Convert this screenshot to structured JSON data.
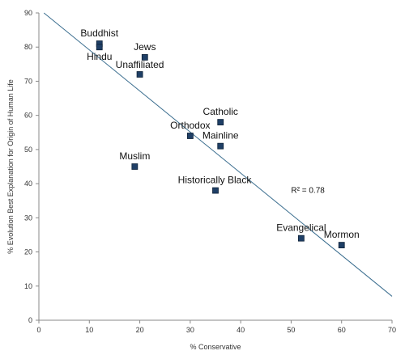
{
  "chart_data": {
    "type": "scatter",
    "title": "",
    "xlabel": "% Conservative",
    "ylabel": "% Evolution Best Explanation for Origin of Human Life",
    "xlim": [
      0,
      70
    ],
    "ylim": [
      0,
      90
    ],
    "x_ticks": [
      0,
      10,
      20,
      30,
      40,
      50,
      60,
      70
    ],
    "y_ticks": [
      0,
      10,
      20,
      30,
      40,
      50,
      60,
      70,
      80,
      90
    ],
    "grid": false,
    "legend": "none",
    "marker_color": "#1f3f66",
    "trendline_color": "#3b6e8f",
    "points": [
      {
        "label": "Buddhist",
        "x": 12,
        "y": 81
      },
      {
        "label": "Hindu",
        "x": 12,
        "y": 80
      },
      {
        "label": "Jews",
        "x": 21,
        "y": 77
      },
      {
        "label": "Unaffiliated",
        "x": 20,
        "y": 72
      },
      {
        "label": "Catholic",
        "x": 36,
        "y": 58
      },
      {
        "label": "Orthodox",
        "x": 30,
        "y": 54
      },
      {
        "label": "Mainline",
        "x": 36,
        "y": 51
      },
      {
        "label": "Muslim",
        "x": 19,
        "y": 45
      },
      {
        "label": "Historically Black",
        "x": 35,
        "y": 38
      },
      {
        "label": "Evangelical",
        "x": 52,
        "y": 24
      },
      {
        "label": "Mormon",
        "x": 60,
        "y": 22
      }
    ],
    "trendline": {
      "x": [
        1,
        70
      ],
      "y": [
        90,
        7
      ]
    },
    "annotation": "R² = 0.78"
  }
}
